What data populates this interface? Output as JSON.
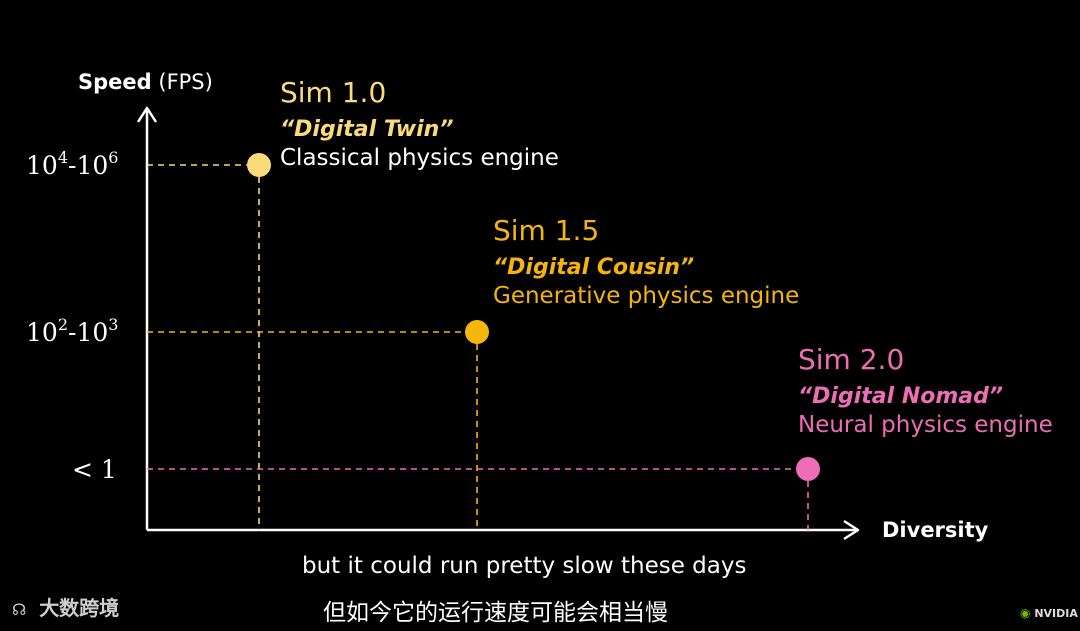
{
  "chart_data": {
    "type": "scatter",
    "title": "",
    "ylabel_bold": "Speed",
    "ylabel_unit": "(FPS)",
    "xlabel": "Diversity",
    "y_ticks": [
      {
        "base1": "10",
        "exp1": "4",
        "sep": "-",
        "base2": "10",
        "exp2": "6"
      },
      {
        "base1": "10",
        "exp1": "2",
        "sep": "-",
        "base2": "10",
        "exp2": "3"
      },
      {
        "text": "< 1"
      }
    ],
    "points": [
      {
        "name": "Sim 1.0",
        "nickname": "“Digital Twin”",
        "description": "Classical physics engine",
        "diversity_rank": 1,
        "speed_level": 3,
        "speed_label": "10^4-10^6 FPS",
        "color": "#FADA7A",
        "text_color": "#FADA7A",
        "desc_color": "#FFFFFF"
      },
      {
        "name": "Sim 1.5",
        "nickname": "“Digital Cousin”",
        "description": "Generative physics engine",
        "diversity_rank": 2,
        "speed_level": 2,
        "speed_label": "10^2-10^3 FPS",
        "color": "#F5B50A",
        "text_color": "#F5B50A",
        "desc_color": "#F5B50A"
      },
      {
        "name": "Sim 2.0",
        "nickname": "“Digital Nomad”",
        "description": "Neural physics engine",
        "diversity_rank": 3,
        "speed_level": 1,
        "speed_label": "< 1 FPS",
        "color": "#EE6DB7",
        "text_color": "#EE6DB7",
        "desc_color": "#EE6DB7"
      }
    ]
  },
  "subtitles": {
    "english": "but it could run pretty slow these days",
    "chinese": "但如今它的运行速度可能会相当慢"
  },
  "watermarks": {
    "left": "大数跨境",
    "right": "NVIDIA"
  }
}
